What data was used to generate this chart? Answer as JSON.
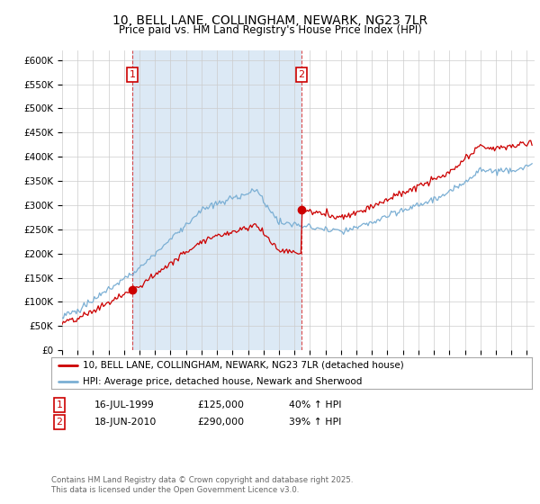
{
  "title": "10, BELL LANE, COLLINGHAM, NEWARK, NG23 7LR",
  "subtitle": "Price paid vs. HM Land Registry's House Price Index (HPI)",
  "ylim": [
    0,
    620000
  ],
  "yticks": [
    0,
    50000,
    100000,
    150000,
    200000,
    250000,
    300000,
    350000,
    400000,
    450000,
    500000,
    550000,
    600000
  ],
  "ytick_labels": [
    "£0",
    "£50K",
    "£100K",
    "£150K",
    "£200K",
    "£250K",
    "£300K",
    "£350K",
    "£400K",
    "£450K",
    "£500K",
    "£550K",
    "£600K"
  ],
  "line1_color": "#cc0000",
  "line2_color": "#7bafd4",
  "shade_color": "#dce9f5",
  "background_color": "#ffffff",
  "grid_color": "#cccccc",
  "purchase1_year": 1999.54,
  "purchase1_price": 125000,
  "purchase1_label": "1",
  "purchase2_year": 2010.46,
  "purchase2_price": 290000,
  "purchase2_label": "2",
  "legend_line1": "10, BELL LANE, COLLINGHAM, NEWARK, NG23 7LR (detached house)",
  "legend_line2": "HPI: Average price, detached house, Newark and Sherwood",
  "table_row1": [
    "1",
    "16-JUL-1999",
    "£125,000",
    "40% ↑ HPI"
  ],
  "table_row2": [
    "2",
    "18-JUN-2010",
    "£290,000",
    "39% ↑ HPI"
  ],
  "footnote": "Contains HM Land Registry data © Crown copyright and database right 2025.\nThis data is licensed under the Open Government Licence v3.0.",
  "title_fontsize": 10,
  "subtitle_fontsize": 8.5,
  "tick_fontsize": 7.5,
  "legend_fontsize": 7.5
}
